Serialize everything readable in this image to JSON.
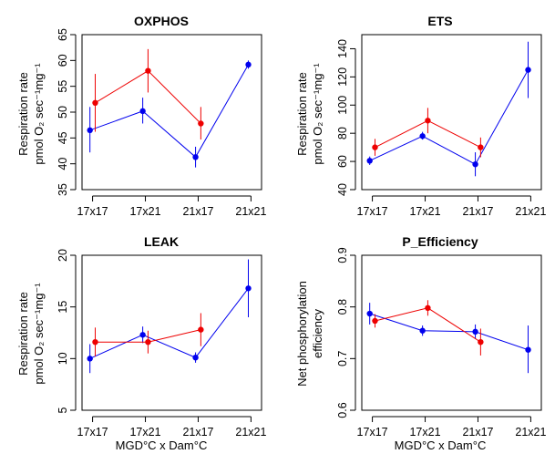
{
  "colors": {
    "blue": "#0000ee",
    "red": "#ee0000"
  },
  "xlabel": "MGD°C x Dam°C",
  "chart_data": [
    {
      "type": "line",
      "title": "OXPHOS",
      "ylabel_lines": [
        "Respiration rate",
        "pmol O₂ sec⁻¹mg⁻¹"
      ],
      "categories": [
        "17x17",
        "17x21",
        "21x17",
        "21x21"
      ],
      "ylim": [
        35,
        65
      ],
      "yticks": [
        35,
        40,
        45,
        50,
        55,
        60,
        65
      ],
      "series": [
        {
          "color": "blue",
          "x_offset": -0.05,
          "values": [
            46.5,
            50.2,
            41.3,
            59.2
          ],
          "err_low": [
            42.2,
            47.8,
            39.3,
            58.4
          ],
          "err_high": [
            51.0,
            52.8,
            43.3,
            60.0
          ]
        },
        {
          "color": "red",
          "x_offset": 0.05,
          "values": [
            51.8,
            58.0,
            47.8,
            null
          ],
          "err_low": [
            46.2,
            53.8,
            44.7,
            null
          ],
          "err_high": [
            57.4,
            62.2,
            51.0,
            null
          ]
        }
      ]
    },
    {
      "type": "line",
      "title": "ETS",
      "ylabel_lines": [
        "Respiration rate",
        "pmol O₂ sec⁻¹mg⁻¹"
      ],
      "categories": [
        "17x17",
        "17x21",
        "21x17",
        "21x21"
      ],
      "ylim": [
        40,
        150
      ],
      "yticks": [
        40,
        60,
        80,
        100,
        120,
        140
      ],
      "series": [
        {
          "color": "blue",
          "x_offset": -0.05,
          "values": [
            60.5,
            78.0,
            58.0,
            125.0
          ],
          "err_low": [
            57.5,
            75.5,
            49.5,
            105.0
          ],
          "err_high": [
            63.5,
            81.0,
            66.5,
            145.0
          ]
        },
        {
          "color": "red",
          "x_offset": 0.05,
          "values": [
            70.0,
            89.0,
            70.0,
            null
          ],
          "err_low": [
            64.0,
            80.0,
            63.0,
            null
          ],
          "err_high": [
            76.0,
            98.0,
            77.0,
            null
          ]
        }
      ]
    },
    {
      "type": "line",
      "title": "LEAK",
      "ylabel_lines": [
        "Respiration rate",
        "pmol O₂ sec⁻¹mg⁻¹"
      ],
      "categories": [
        "17x17",
        "17x21",
        "21x17",
        "21x21"
      ],
      "ylim": [
        5,
        20
      ],
      "yticks": [
        5,
        10,
        15,
        20
      ],
      "series": [
        {
          "color": "blue",
          "x_offset": -0.05,
          "values": [
            10.0,
            12.3,
            10.1,
            16.8
          ],
          "err_low": [
            8.6,
            11.5,
            9.6,
            14.0
          ],
          "err_high": [
            11.4,
            13.1,
            10.6,
            19.6
          ]
        },
        {
          "color": "red",
          "x_offset": 0.05,
          "values": [
            11.6,
            11.6,
            12.8,
            null
          ],
          "err_low": [
            10.2,
            10.5,
            11.2,
            null
          ],
          "err_high": [
            13.0,
            12.7,
            14.4,
            null
          ]
        }
      ]
    },
    {
      "type": "line",
      "title": "P_Efficiency",
      "ylabel_lines": [
        "Net phosphorylation",
        "efficiency"
      ],
      "categories": [
        "17x17",
        "17x21",
        "21x17",
        "21x21"
      ],
      "ylim": [
        0.6,
        0.9
      ],
      "yticks": [
        0.6,
        0.7,
        0.8,
        0.9
      ],
      "series": [
        {
          "color": "blue",
          "x_offset": -0.05,
          "values": [
            0.787,
            0.754,
            0.752,
            0.717
          ],
          "err_low": [
            0.766,
            0.744,
            0.738,
            0.672
          ],
          "err_high": [
            0.808,
            0.764,
            0.766,
            0.764
          ]
        },
        {
          "color": "red",
          "x_offset": 0.05,
          "values": [
            0.773,
            0.798,
            0.732,
            null
          ],
          "err_low": [
            0.76,
            0.783,
            0.706,
            null
          ],
          "err_high": [
            0.786,
            0.813,
            0.758,
            null
          ]
        }
      ]
    }
  ]
}
